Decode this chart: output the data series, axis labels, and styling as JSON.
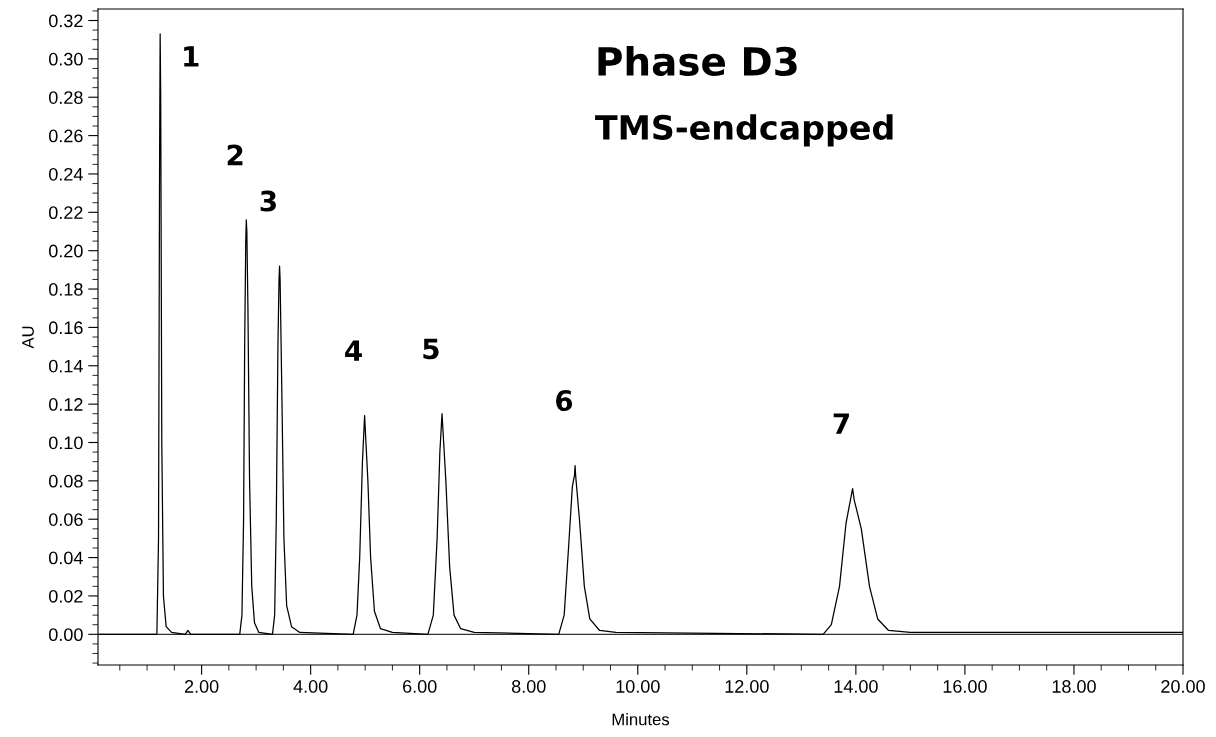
{
  "chart_data": {
    "type": "line",
    "title": "Phase D3",
    "subtitle": "TMS-endcapped",
    "xlabel": "Minutes",
    "ylabel": "AU",
    "series": [
      {
        "color": "#000000",
        "x": [
          0.1,
          1.18,
          1.21,
          1.23,
          1.24,
          1.25,
          1.27,
          1.3,
          1.35,
          1.45,
          1.7,
          1.75,
          1.8,
          2.7,
          2.74,
          2.77,
          2.79,
          2.81,
          2.82,
          2.83,
          2.85,
          2.88,
          2.92,
          2.97,
          3.05,
          3.3,
          3.34,
          3.37,
          3.4,
          3.42,
          3.43,
          3.44,
          3.47,
          3.51,
          3.56,
          3.65,
          3.8,
          4.78,
          4.85,
          4.9,
          4.95,
          4.98,
          4.99,
          5.0,
          5.05,
          5.1,
          5.17,
          5.28,
          5.5,
          6.15,
          6.25,
          6.32,
          6.37,
          6.4,
          6.41,
          6.42,
          6.48,
          6.55,
          6.63,
          6.75,
          7.0,
          8.55,
          8.65,
          8.73,
          8.8,
          8.84,
          8.85,
          8.86,
          8.93,
          9.02,
          9.12,
          9.3,
          9.6,
          13.4,
          13.55,
          13.7,
          13.82,
          13.9,
          13.94,
          13.97,
          14.1,
          14.25,
          14.4,
          14.6,
          15.0,
          20.0
        ],
        "values": [
          0.0,
          0.0,
          0.05,
          0.25,
          0.313,
          0.28,
          0.1,
          0.02,
          0.004,
          0.001,
          0.0,
          0.002,
          0.0,
          0.0,
          0.01,
          0.06,
          0.15,
          0.205,
          0.216,
          0.21,
          0.17,
          0.08,
          0.025,
          0.006,
          0.001,
          0.0,
          0.01,
          0.06,
          0.15,
          0.185,
          0.192,
          0.185,
          0.13,
          0.05,
          0.015,
          0.004,
          0.001,
          0.0,
          0.01,
          0.04,
          0.09,
          0.108,
          0.114,
          0.108,
          0.08,
          0.04,
          0.012,
          0.003,
          0.001,
          0.0,
          0.01,
          0.05,
          0.095,
          0.11,
          0.115,
          0.11,
          0.08,
          0.035,
          0.01,
          0.003,
          0.001,
          0.0,
          0.01,
          0.045,
          0.077,
          0.083,
          0.088,
          0.083,
          0.06,
          0.025,
          0.008,
          0.002,
          0.001,
          0.0,
          0.005,
          0.025,
          0.058,
          0.07,
          0.076,
          0.07,
          0.055,
          0.025,
          0.008,
          0.002,
          0.001,
          0.001
        ]
      }
    ],
    "annotations": [
      {
        "text": "1",
        "x": 1.24,
        "y": 0.313
      },
      {
        "text": "2",
        "x": 2.82,
        "y": 0.216
      },
      {
        "text": "3",
        "x": 3.43,
        "y": 0.192
      },
      {
        "text": "4",
        "x": 4.99,
        "y": 0.114
      },
      {
        "text": "5",
        "x": 6.41,
        "y": 0.115
      },
      {
        "text": "6",
        "x": 8.85,
        "y": 0.088
      },
      {
        "text": "7",
        "x": 13.94,
        "y": 0.076
      }
    ],
    "ref_lines": [
      {
        "axis": "y",
        "value": 0,
        "color": "#333333",
        "line_style": "solid"
      }
    ],
    "xlim": [
      0.1,
      20
    ],
    "xticks": [
      {
        "value": 2,
        "label": "2.00"
      },
      {
        "value": 4,
        "label": "4.00"
      },
      {
        "value": 6,
        "label": "6.00"
      },
      {
        "value": 8,
        "label": "8.00"
      },
      {
        "value": 10,
        "label": "10.00"
      },
      {
        "value": 12,
        "label": "12.00"
      },
      {
        "value": 14,
        "label": "14.00"
      },
      {
        "value": 16,
        "label": "16.00"
      },
      {
        "value": 18,
        "label": "18.00"
      },
      {
        "value": 20,
        "label": "20.00"
      }
    ],
    "ylim": [
      -0.016,
      0.326
    ],
    "yticks": [
      {
        "value": 0,
        "label": "0.00"
      },
      {
        "value": 0.02,
        "label": "0.02"
      },
      {
        "value": 0.04,
        "label": "0.04"
      },
      {
        "value": 0.06,
        "label": "0.06"
      },
      {
        "value": 0.08,
        "label": "0.08"
      },
      {
        "value": 0.1,
        "label": "0.10"
      },
      {
        "value": 0.12,
        "label": "0.12"
      },
      {
        "value": 0.14,
        "label": "0.14"
      },
      {
        "value": 0.16,
        "label": "0.16"
      },
      {
        "value": 0.18,
        "label": "0.18"
      },
      {
        "value": 0.2,
        "label": "0.20"
      },
      {
        "value": 0.22,
        "label": "0.22"
      },
      {
        "value": 0.24,
        "label": "0.24"
      },
      {
        "value": 0.26,
        "label": "0.26"
      },
      {
        "value": 0.28,
        "label": "0.28"
      },
      {
        "value": 0.3,
        "label": "0.30"
      },
      {
        "value": 0.32,
        "label": "0.32"
      }
    ],
    "grid": false,
    "legend": false,
    "marker": "none",
    "line_style": "solid"
  }
}
